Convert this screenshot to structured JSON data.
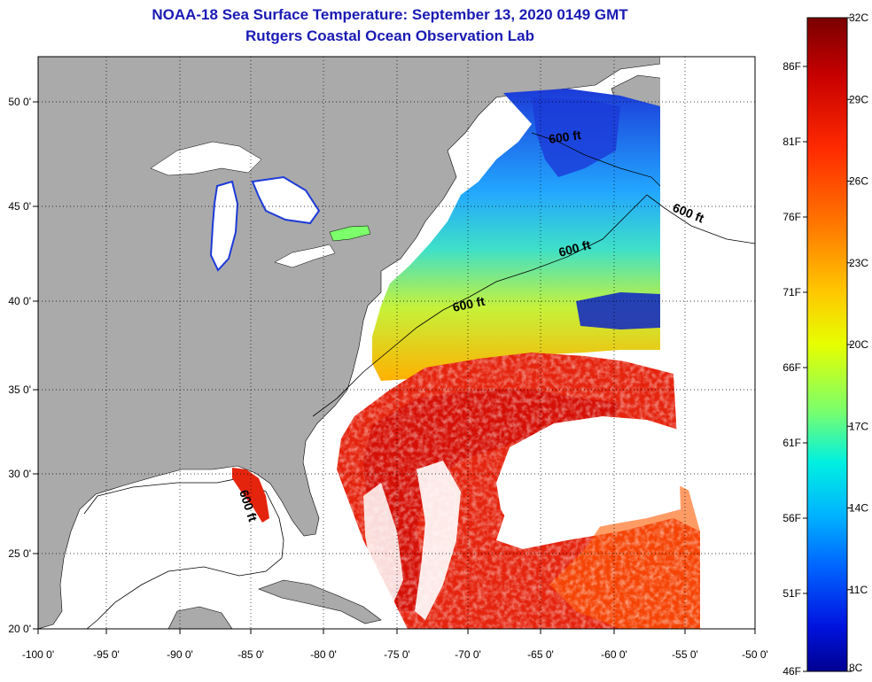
{
  "header": {
    "title": "NOAA-18 Sea Surface Temperature:  September 13, 2020 0149 GMT",
    "subtitle": "Rutgers Coastal Ocean Observation Lab"
  },
  "map": {
    "lon_ticks": [
      "-100 0'",
      "-95 0'",
      "-90 0'",
      "-85 0'",
      "-80 0'",
      "-75 0'",
      "-70 0'",
      "-65 0'",
      "-60 0'",
      "-55 0'",
      "-50 0'"
    ],
    "lat_ticks": [
      "50 0'",
      "45 0'",
      "40 0'",
      "35 0'",
      "30 0'",
      "25 0'",
      "20 0'"
    ],
    "contour_labels": [
      "600 ft",
      "600 ft",
      "600 ft",
      "600 ft",
      "600 ft"
    ],
    "colors": {
      "land": "#aaaaaa",
      "cloud": "#ffffff",
      "warm": "#e5240e",
      "cold": "#1c3ad8"
    }
  },
  "colorbar": {
    "celsius_labels": [
      "32C",
      "29C",
      "26C",
      "23C",
      "20C",
      "17C",
      "14C",
      "11C",
      "8C"
    ],
    "fahrenheit_labels": [
      "86F",
      "81F",
      "76F",
      "71F",
      "66F",
      "61F",
      "56F",
      "51F",
      "46F"
    ],
    "gradient_colors": [
      "#7a0000",
      "#c80000",
      "#ff2a00",
      "#ff7a00",
      "#ffc800",
      "#e6ff00",
      "#7cff6a",
      "#00f0e0",
      "#00b4ff",
      "#0064ff",
      "#0014e0",
      "#000090"
    ]
  }
}
